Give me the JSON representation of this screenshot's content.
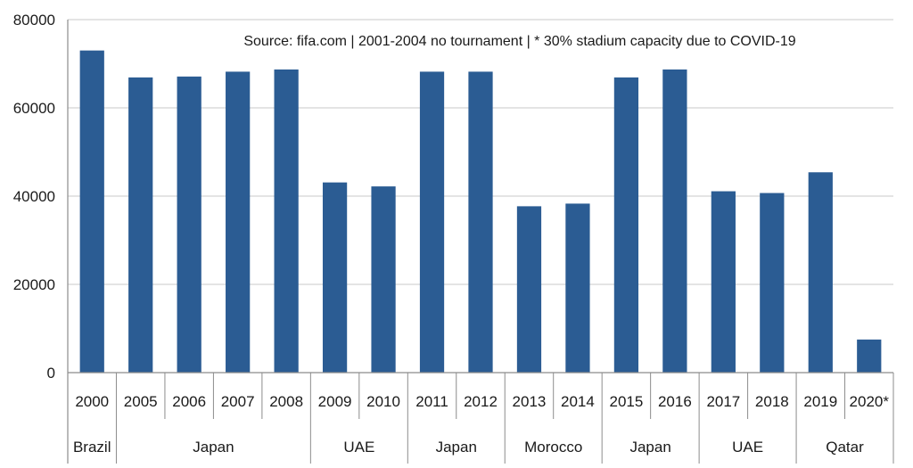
{
  "chart_data": {
    "type": "bar",
    "title": "",
    "xlabel": "",
    "ylabel": "",
    "ylim": [
      0,
      80000
    ],
    "yticks": [
      "0",
      "20000",
      "40000",
      "60000",
      "80000"
    ],
    "grid": true,
    "bar_color": "#2b5c93",
    "categories": [
      "2000",
      "2005",
      "2006",
      "2007",
      "2008",
      "2009",
      "2010",
      "2011",
      "2012",
      "2013",
      "2014",
      "2015",
      "2016",
      "2017",
      "2018",
      "2019",
      "2020*"
    ],
    "values": [
      73000,
      66900,
      67100,
      68200,
      68700,
      43100,
      42200,
      68200,
      68200,
      37700,
      38300,
      66900,
      68700,
      41100,
      40700,
      45400,
      7500
    ],
    "groups": [
      {
        "label": "Brazil",
        "count": 1
      },
      {
        "label": "Japan",
        "count": 4
      },
      {
        "label": "UAE",
        "count": 2
      },
      {
        "label": "Japan",
        "count": 2
      },
      {
        "label": "Morocco",
        "count": 2
      },
      {
        "label": "Japan",
        "count": 2
      },
      {
        "label": "UAE",
        "count": 2
      },
      {
        "label": "Qatar",
        "count": 2
      }
    ],
    "annotation": "Source: fifa.com | 2001-2004 no tournament | * 30% stadium capacity due to COVID-19"
  }
}
